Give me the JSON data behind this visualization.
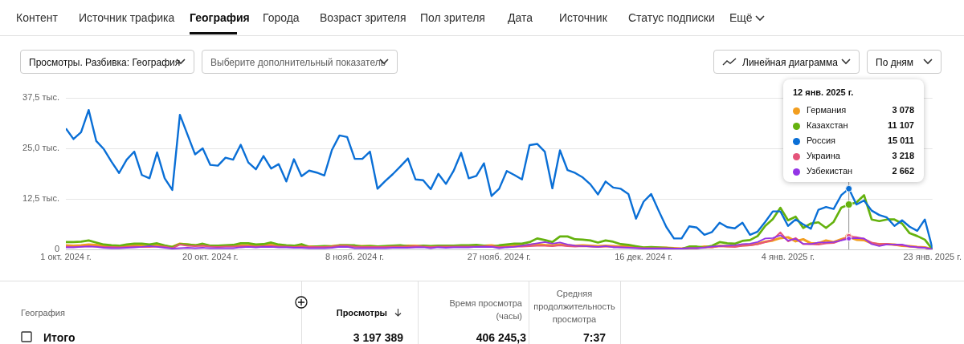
{
  "chart_data": {
    "type": "line",
    "annotations": [
      "Контент",
      "Источник трафика",
      "География",
      "Города",
      "Возраст зрителя",
      "Пол зрителя",
      "Дата",
      "Источник",
      "Статус подписки",
      "Ещё",
      "Просмотры. Разбивка: География",
      "Выберите дополнительный показатель",
      "Линейная диаграмма",
      "По дням",
      "12 янв. 2025 г.",
      "География",
      "Просмотры",
      "Время просмотра (часы)",
      "Средняя продолжительность просмотра",
      "Итого",
      "3 197 389",
      "406 245,3",
      "7:37",
      "3 078",
      "11 107",
      "15 011",
      "3 218",
      "2 662"
    ],
    "x": [
      "2024-10-01",
      "2024-10-02",
      "2024-10-03",
      "2024-10-04",
      "2024-10-05",
      "2024-10-06",
      "2024-10-07",
      "2024-10-08",
      "2024-10-09",
      "2024-10-10",
      "2024-10-11",
      "2024-10-12",
      "2024-10-13",
      "2024-10-14",
      "2024-10-15",
      "2024-10-16",
      "2024-10-17",
      "2024-10-18",
      "2024-10-19",
      "2024-10-20",
      "2024-10-21",
      "2024-10-22",
      "2024-10-23",
      "2024-10-24",
      "2024-10-25",
      "2024-10-26",
      "2024-10-27",
      "2024-10-28",
      "2024-10-29",
      "2024-10-30",
      "2024-10-31",
      "2024-11-01",
      "2024-11-02",
      "2024-11-03",
      "2024-11-04",
      "2024-11-05",
      "2024-11-06",
      "2024-11-07",
      "2024-11-08",
      "2024-11-09",
      "2024-11-10",
      "2024-11-11",
      "2024-11-12",
      "2024-11-13",
      "2024-11-14",
      "2024-11-15",
      "2024-11-16",
      "2024-11-17",
      "2024-11-18",
      "2024-11-19",
      "2024-11-20",
      "2024-11-21",
      "2024-11-22",
      "2024-11-23",
      "2024-11-24",
      "2024-11-25",
      "2024-11-26",
      "2024-11-27",
      "2024-11-28",
      "2024-11-29",
      "2024-11-30",
      "2024-12-01",
      "2024-12-02",
      "2024-12-03",
      "2024-12-04",
      "2024-12-05",
      "2024-12-06",
      "2024-12-07",
      "2024-12-08",
      "2024-12-09",
      "2024-12-10",
      "2024-12-11",
      "2024-12-12",
      "2024-12-13",
      "2024-12-14",
      "2024-12-15",
      "2024-12-16",
      "2024-12-17",
      "2024-12-18",
      "2024-12-19",
      "2024-12-20",
      "2024-12-21",
      "2024-12-22",
      "2024-12-23",
      "2024-12-24",
      "2024-12-25",
      "2024-12-26",
      "2024-12-27",
      "2024-12-28",
      "2024-12-29",
      "2024-12-30",
      "2024-12-31",
      "2025-01-01",
      "2025-01-02",
      "2025-01-03",
      "2025-01-04",
      "2025-01-05",
      "2025-01-06",
      "2025-01-07",
      "2025-01-08",
      "2025-01-09",
      "2025-01-10",
      "2025-01-11",
      "2025-01-12",
      "2025-01-13",
      "2025-01-14",
      "2025-01-15",
      "2025-01-16",
      "2025-01-17",
      "2025-01-18",
      "2025-01-19",
      "2025-01-20",
      "2025-01-21",
      "2025-01-22",
      "2025-01-23"
    ],
    "xlim": [
      "2024-10-01",
      "2025-01-23"
    ],
    "xticks": [
      {
        "value": "2024-10-01",
        "label": "1 окт. 2024 г."
      },
      {
        "value": "2024-10-20",
        "label": "20 окт. 2024 г."
      },
      {
        "value": "2024-11-08",
        "label": "8 нояб. 2024 г."
      },
      {
        "value": "2024-11-27",
        "label": "27 нояб. 2024 г."
      },
      {
        "value": "2024-12-16",
        "label": "16 дек. 2024 г."
      },
      {
        "value": "2025-01-04",
        "label": "4 янв. 2025 г."
      },
      {
        "value": "2025-01-23",
        "label": "23 янв. 2025 г."
      }
    ],
    "ylim": [
      0,
      37.5
    ],
    "yticks": [
      0,
      {
        "value": 12.5,
        "label": "12,5 тыс."
      },
      {
        "value": 25,
        "label": "25,0 тыс."
      },
      {
        "value": 37.5,
        "label": "37,5 тыс."
      }
    ],
    "grid": "y",
    "legend": "top right",
    "marker": "none",
    "ref_lines": [
      {
        "axis": "x",
        "value": "2025-01-12",
        "color": "#909090"
      }
    ],
    "series": [
      {
        "name": "Германия",
        "color": "#f29e1f",
        "values": [
          1.0,
          0.9,
          1.0,
          1.2,
          1.1,
          0.9,
          0.8,
          0.7,
          0.8,
          0.9,
          0.9,
          0.8,
          1.0,
          0.8,
          0.6,
          1.4,
          1.2,
          1.0,
          1.1,
          0.9,
          0.8,
          0.9,
          0.9,
          1.0,
          1.0,
          0.9,
          1.0,
          1.1,
          0.9,
          0.8,
          0.8,
          0.9,
          0.7,
          0.7,
          0.7,
          0.8,
          1.0,
          1.0,
          0.8,
          0.8,
          0.8,
          0.7,
          0.7,
          0.8,
          0.8,
          0.9,
          0.9,
          0.8,
          0.7,
          0.8,
          0.8,
          0.8,
          0.9,
          0.8,
          0.8,
          0.9,
          1.0,
          0.7,
          0.7,
          0.9,
          0.9,
          1.1,
          1.3,
          1.1,
          1.0,
          1.2,
          1.0,
          0.9,
          1.0,
          0.9,
          0.8,
          0.9,
          0.8,
          0.7,
          0.7,
          0.6,
          0.4,
          0.5,
          0.4,
          0.4,
          0.3,
          0.2,
          0.4,
          0.4,
          0.7,
          0.6,
          0.9,
          0.8,
          0.8,
          1.0,
          1.1,
          1.4,
          1.9,
          2.2,
          2.8,
          3.0,
          2.0,
          2.5,
          1.5,
          1.5,
          2.2,
          1.8,
          2.5,
          3.078,
          2.4,
          2.3,
          1.5,
          1.3,
          1.3,
          1.2,
          0.9,
          0.8,
          0.6,
          0.5,
          0
        ]
      },
      {
        "name": "Казахстан",
        "color": "#65b20e",
        "values": [
          1.8,
          1.8,
          1.9,
          2.2,
          1.7,
          1.2,
          1.0,
          0.9,
          1.2,
          1.4,
          1.4,
          1.2,
          1.5,
          1.0,
          0.6,
          1.3,
          1.2,
          1.0,
          1.4,
          0.9,
          0.9,
          1.0,
          1.1,
          1.5,
          1.5,
          1.2,
          1.3,
          1.7,
          1.2,
          1.0,
          0.9,
          1.3,
          0.6,
          0.7,
          0.8,
          0.7,
          1.0,
          1.0,
          1.0,
          0.7,
          0.8,
          0.7,
          0.8,
          0.9,
          1.0,
          0.8,
          0.7,
          0.9,
          0.8,
          0.9,
          0.9,
          0.9,
          1.0,
          1.0,
          1.1,
          0.9,
          0.7,
          1.0,
          1.2,
          1.4,
          1.4,
          1.8,
          2.7,
          2.3,
          1.8,
          3.2,
          3.2,
          2.5,
          2.4,
          2.2,
          1.7,
          2.2,
          1.9,
          1.3,
          1.1,
          0.8,
          0.5,
          0.6,
          0.5,
          0.4,
          0.2,
          0.1,
          0.7,
          0.7,
          0.5,
          0.9,
          1.8,
          1.5,
          1.4,
          2.1,
          2.3,
          3.3,
          5.8,
          7.5,
          10.3,
          7.2,
          8.1,
          5.3,
          6.4,
          6.7,
          5.3,
          6.8,
          10.3,
          11.107,
          11.6,
          13.4,
          7.4,
          7.0,
          7.4,
          7.4,
          6.4,
          4.0,
          3.3,
          2.4,
          0
        ]
      },
      {
        "name": "Россия",
        "color": "#0a6fd6",
        "values": [
          29.9,
          27.3,
          29.0,
          34.5,
          26.8,
          24.8,
          21.7,
          18.9,
          22.2,
          24.2,
          18.4,
          17.6,
          24.0,
          17.6,
          14.7,
          33.3,
          28.4,
          23.5,
          25.0,
          20.9,
          20.7,
          22.7,
          22.2,
          25.9,
          21.5,
          19.8,
          23.1,
          20.0,
          21.1,
          16.8,
          22.3,
          18.1,
          19.5,
          19.0,
          18.3,
          24.6,
          28.2,
          27.8,
          22.4,
          22.4,
          24.2,
          15.0,
          16.9,
          18.6,
          20.5,
          22.5,
          17.3,
          17.1,
          14.9,
          18.7,
          16.2,
          19.4,
          23.9,
          17.6,
          18.2,
          21.3,
          13.2,
          15.0,
          19.4,
          18.4,
          17.3,
          25.8,
          26.1,
          24.2,
          15.1,
          24.5,
          19.6,
          18.9,
          17.8,
          16.1,
          13.6,
          16.8,
          15.3,
          15.0,
          13.7,
          7.6,
          11.8,
          13.7,
          9.5,
          5.5,
          2.7,
          2.7,
          5.7,
          5.4,
          3.6,
          4.3,
          6.6,
          5.5,
          5.2,
          6.6,
          3.6,
          4.4,
          6.8,
          9.4,
          9.4,
          5.8,
          7.4,
          6.2,
          5.1,
          9.8,
          10.5,
          10.0,
          13.4,
          15.011,
          11.1,
          12.1,
          9.6,
          8.5,
          7.9,
          5.8,
          7.2,
          5.6,
          4.6,
          7.4,
          0.2
        ]
      },
      {
        "name": "Украина",
        "color": "#e5547a",
        "values": [
          0.7,
          0.6,
          0.7,
          0.8,
          0.7,
          0.6,
          0.6,
          0.5,
          0.6,
          0.7,
          0.6,
          0.6,
          0.7,
          0.7,
          0.3,
          1.2,
          0.9,
          0.8,
          0.9,
          0.7,
          0.6,
          0.7,
          0.7,
          0.8,
          0.8,
          0.7,
          0.8,
          0.9,
          0.7,
          0.7,
          0.6,
          0.7,
          0.6,
          0.6,
          0.6,
          0.7,
          0.9,
          0.9,
          0.7,
          0.6,
          0.6,
          0.6,
          0.6,
          0.7,
          0.7,
          0.7,
          0.8,
          0.7,
          0.6,
          0.7,
          0.7,
          0.7,
          0.7,
          0.7,
          0.7,
          0.8,
          0.8,
          0.6,
          0.6,
          0.7,
          0.7,
          0.8,
          0.9,
          0.9,
          0.8,
          1.0,
          0.8,
          0.7,
          0.8,
          0.7,
          0.6,
          0.7,
          0.7,
          0.5,
          0.5,
          0.4,
          0.3,
          0.3,
          0.3,
          0.3,
          0.2,
          0.2,
          0.3,
          0.3,
          0.5,
          0.5,
          0.8,
          0.7,
          0.6,
          0.9,
          1.0,
          1.3,
          1.8,
          2.4,
          4.2,
          2.0,
          2.8,
          1.3,
          1.3,
          1.2,
          1.5,
          1.6,
          2.3,
          3.218,
          3.0,
          2.6,
          1.7,
          1.3,
          1.4,
          1.1,
          1.0,
          0.7,
          0.6,
          0.4,
          0
        ]
      },
      {
        "name": "Узбекистан",
        "color": "#9334e6",
        "values": [
          0.5,
          0.5,
          0.6,
          0.7,
          0.6,
          0.4,
          0.3,
          0.3,
          0.4,
          0.5,
          0.6,
          0.8,
          0.6,
          0.4,
          0.2,
          0.3,
          0.4,
          0.3,
          0.4,
          0.3,
          0.3,
          0.3,
          0.3,
          0.5,
          0.6,
          0.5,
          0.6,
          0.6,
          0.5,
          0.5,
          0.4,
          0.4,
          0.3,
          0.3,
          0.3,
          0.4,
          0.6,
          0.6,
          0.3,
          0.3,
          0.3,
          0.3,
          0.3,
          0.4,
          0.4,
          0.4,
          0.5,
          0.5,
          0.3,
          0.5,
          0.4,
          0.5,
          0.5,
          0.5,
          0.6,
          0.6,
          0.6,
          0.3,
          0.5,
          0.6,
          0.9,
          1.2,
          1.5,
          1.8,
          1.4,
          1.7,
          1.2,
          0.9,
          0.8,
          0.7,
          0.6,
          0.8,
          0.5,
          0.5,
          0.4,
          0.3,
          0.2,
          0.2,
          0.2,
          0.2,
          0.2,
          0.2,
          0.3,
          0.3,
          0.4,
          0.7,
          0.8,
          0.9,
          1.0,
          1.3,
          1.4,
          1.8,
          2.7,
          2.8,
          3.5,
          2.2,
          2.6,
          1.4,
          1.3,
          1.7,
          1.7,
          1.8,
          2.2,
          2.662,
          2.8,
          2.7,
          1.3,
          0.8,
          1.2,
          1.2,
          1.2,
          0.7,
          0.5,
          0.4,
          0
        ]
      }
    ]
  }
}
